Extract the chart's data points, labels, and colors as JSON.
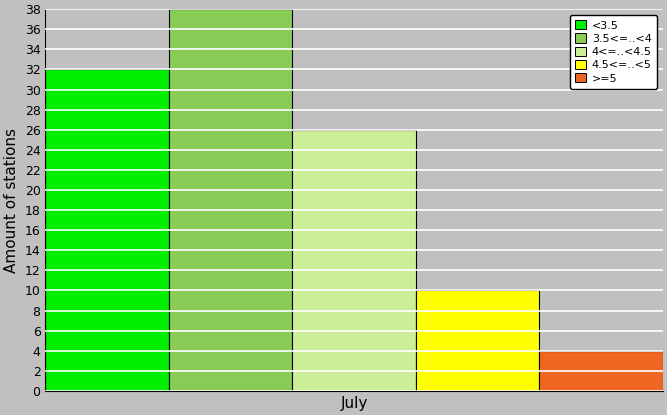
{
  "bars": [
    {
      "label": "<3.5",
      "value": 32,
      "color": "#00EE00"
    },
    {
      "label": "3.5<=..<4",
      "value": 38,
      "color": "#88CC55"
    },
    {
      "label": "4<=..<4.5",
      "value": 26,
      "color": "#CCEE99"
    },
    {
      "label": "4.5<=..<5",
      "value": 10,
      "color": "#FFFF00"
    },
    {
      "label": ">=5",
      "value": 4,
      "color": "#EE6622"
    }
  ],
  "xlabel": "July",
  "ylabel": "Amount of stations",
  "ylim": [
    0,
    38
  ],
  "yticks": [
    0,
    2,
    4,
    6,
    8,
    10,
    12,
    14,
    16,
    18,
    20,
    22,
    24,
    26,
    28,
    30,
    32,
    34,
    36,
    38
  ],
  "background_color": "#C0C0C0",
  "plot_bg_color": "#C0C0C0",
  "bar_edge_color": "#000000",
  "legend_labels": [
    "<3.5",
    "3.5<=..<4",
    "4<=..<4.5",
    "4.5<=..<5",
    ">=5"
  ],
  "legend_colors": [
    "#00EE00",
    "#88CC55",
    "#CCEE99",
    "#FFFF00",
    "#EE6622"
  ],
  "grid_color": "#FFFFFF",
  "grid_linewidth": 1.2
}
